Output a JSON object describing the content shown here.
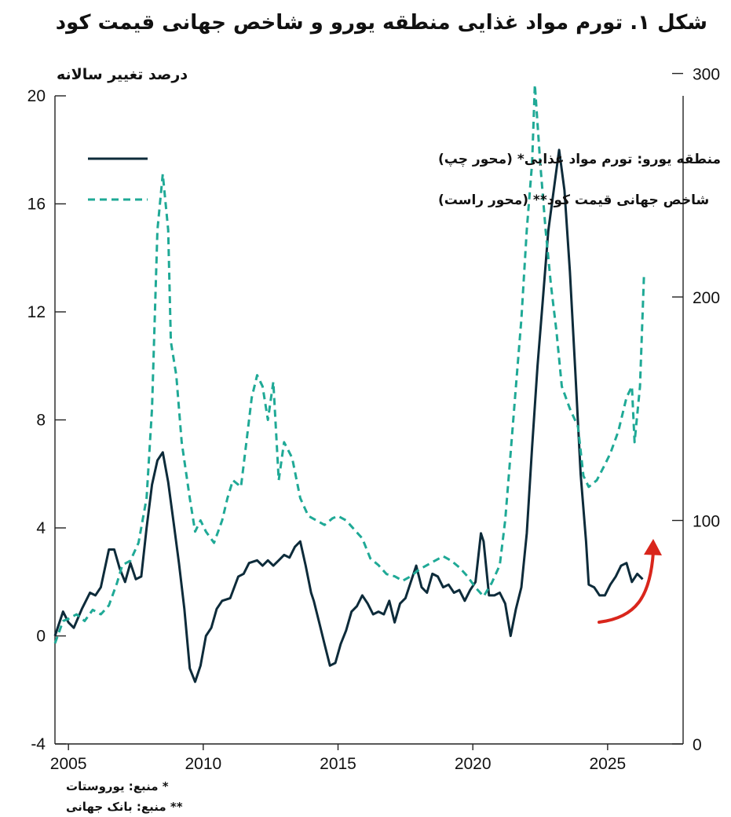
{
  "title": "شکل ۱. تورم مواد غذایی منطقه یورو و شاخص جهانی قیمت کود",
  "ylabel": "درصد تغییر سالانه",
  "notes": [
    "* منبع: یوروستات",
    "** منبع: بانک جهانی"
  ],
  "colors": {
    "series1": "#0d2b3a",
    "series2": "#1fa996",
    "arrow": "#d9261c"
  },
  "chart_data": {
    "type": "line",
    "xlim": [
      2004.5,
      2027.8
    ],
    "x_ticks": [
      2005,
      2010,
      2015,
      2020,
      2025
    ],
    "left_axis": {
      "ylim": [
        -4,
        20
      ],
      "ticks": [
        -4,
        0,
        4,
        8,
        12,
        16,
        20
      ]
    },
    "right_axis": {
      "ylim": [
        0,
        290
      ],
      "ticks": [
        0,
        100,
        200,
        300
      ]
    },
    "legend_placement": "top-left",
    "series": [
      {
        "name": "منطقه یورو: تورم مواد غذایی* (محور چپ)",
        "axis": "left",
        "style": "solid",
        "points": [
          [
            2004.5,
            0
          ],
          [
            2004.8,
            0.9
          ],
          [
            2005.0,
            0.5
          ],
          [
            2005.2,
            0.3
          ],
          [
            2005.5,
            1.0
          ],
          [
            2005.8,
            1.6
          ],
          [
            2006.0,
            1.5
          ],
          [
            2006.2,
            1.8
          ],
          [
            2006.5,
            3.2
          ],
          [
            2006.7,
            3.2
          ],
          [
            2006.9,
            2.5
          ],
          [
            2007.1,
            2.0
          ],
          [
            2007.3,
            2.7
          ],
          [
            2007.5,
            2.1
          ],
          [
            2007.7,
            2.2
          ],
          [
            2007.9,
            4.0
          ],
          [
            2008.1,
            5.6
          ],
          [
            2008.3,
            6.5
          ],
          [
            2008.5,
            6.8
          ],
          [
            2008.7,
            5.7
          ],
          [
            2008.9,
            4.2
          ],
          [
            2009.1,
            2.7
          ],
          [
            2009.3,
            1.0
          ],
          [
            2009.5,
            -1.2
          ],
          [
            2009.7,
            -1.7
          ],
          [
            2009.9,
            -1.1
          ],
          [
            2010.1,
            0.0
          ],
          [
            2010.3,
            0.3
          ],
          [
            2010.5,
            1.0
          ],
          [
            2010.7,
            1.3
          ],
          [
            2011.0,
            1.4
          ],
          [
            2011.3,
            2.2
          ],
          [
            2011.5,
            2.3
          ],
          [
            2011.7,
            2.7
          ],
          [
            2012.0,
            2.8
          ],
          [
            2012.2,
            2.6
          ],
          [
            2012.4,
            2.8
          ],
          [
            2012.6,
            2.6
          ],
          [
            2012.8,
            2.8
          ],
          [
            2013.0,
            3.0
          ],
          [
            2013.2,
            2.9
          ],
          [
            2013.4,
            3.3
          ],
          [
            2013.6,
            3.5
          ],
          [
            2013.8,
            2.6
          ],
          [
            2014.0,
            1.6
          ],
          [
            2014.1,
            1.3
          ],
          [
            2014.3,
            0.5
          ],
          [
            2014.5,
            -0.3
          ],
          [
            2014.7,
            -1.1
          ],
          [
            2014.9,
            -1.0
          ],
          [
            2015.1,
            -0.3
          ],
          [
            2015.3,
            0.2
          ],
          [
            2015.5,
            0.9
          ],
          [
            2015.7,
            1.1
          ],
          [
            2015.9,
            1.5
          ],
          [
            2016.1,
            1.2
          ],
          [
            2016.3,
            0.8
          ],
          [
            2016.5,
            0.9
          ],
          [
            2016.7,
            0.8
          ],
          [
            2016.9,
            1.3
          ],
          [
            2017.1,
            0.5
          ],
          [
            2017.3,
            1.2
          ],
          [
            2017.5,
            1.4
          ],
          [
            2017.7,
            2.0
          ],
          [
            2017.9,
            2.6
          ],
          [
            2018.1,
            1.8
          ],
          [
            2018.3,
            1.6
          ],
          [
            2018.5,
            2.3
          ],
          [
            2018.7,
            2.2
          ],
          [
            2018.9,
            1.8
          ],
          [
            2019.1,
            1.9
          ],
          [
            2019.3,
            1.6
          ],
          [
            2019.5,
            1.7
          ],
          [
            2019.7,
            1.3
          ],
          [
            2019.9,
            1.7
          ],
          [
            2020.1,
            2.0
          ],
          [
            2020.3,
            3.8
          ],
          [
            2020.4,
            3.5
          ],
          [
            2020.6,
            1.5
          ],
          [
            2020.8,
            1.5
          ],
          [
            2021.0,
            1.6
          ],
          [
            2021.2,
            1.2
          ],
          [
            2021.4,
            0.0
          ],
          [
            2021.6,
            1.0
          ],
          [
            2021.8,
            1.8
          ],
          [
            2022.0,
            3.8
          ],
          [
            2022.2,
            7.0
          ],
          [
            2022.4,
            10.0
          ],
          [
            2022.6,
            12.5
          ],
          [
            2022.8,
            15.0
          ],
          [
            2023.0,
            16.5
          ],
          [
            2023.2,
            18.0
          ],
          [
            2023.4,
            16.5
          ],
          [
            2023.6,
            13.5
          ],
          [
            2023.8,
            9.8
          ],
          [
            2024.0,
            6.0
          ],
          [
            2024.2,
            3.5
          ],
          [
            2024.3,
            1.9
          ],
          [
            2024.5,
            1.8
          ],
          [
            2024.7,
            1.5
          ],
          [
            2024.9,
            1.5
          ],
          [
            2025.1,
            1.9
          ],
          [
            2025.3,
            2.2
          ],
          [
            2025.5,
            2.6
          ],
          [
            2025.7,
            2.7
          ],
          [
            2025.9,
            2.0
          ],
          [
            2026.1,
            2.3
          ],
          [
            2026.3,
            2.1
          ]
        ]
      },
      {
        "name": "شاخص جهانی قیمت کود** (محور راست)",
        "axis": "right",
        "style": "dashed",
        "points": [
          [
            2004.5,
            45
          ],
          [
            2004.8,
            55
          ],
          [
            2005.0,
            56
          ],
          [
            2005.3,
            58
          ],
          [
            2005.6,
            55
          ],
          [
            2005.9,
            60
          ],
          [
            2006.2,
            58
          ],
          [
            2006.5,
            62
          ],
          [
            2006.8,
            72
          ],
          [
            2007.0,
            80
          ],
          [
            2007.3,
            82
          ],
          [
            2007.6,
            90
          ],
          [
            2007.9,
            110
          ],
          [
            2008.1,
            150
          ],
          [
            2008.3,
            230
          ],
          [
            2008.5,
            255
          ],
          [
            2008.7,
            230
          ],
          [
            2008.8,
            180
          ],
          [
            2009.0,
            165
          ],
          [
            2009.2,
            135
          ],
          [
            2009.5,
            110
          ],
          [
            2009.7,
            95
          ],
          [
            2009.9,
            100
          ],
          [
            2010.1,
            95
          ],
          [
            2010.4,
            90
          ],
          [
            2010.7,
            100
          ],
          [
            2010.9,
            110
          ],
          [
            2011.1,
            118
          ],
          [
            2011.4,
            115
          ],
          [
            2011.6,
            135
          ],
          [
            2011.8,
            155
          ],
          [
            2012.0,
            165
          ],
          [
            2012.2,
            160
          ],
          [
            2012.4,
            145
          ],
          [
            2012.6,
            162
          ],
          [
            2012.8,
            118
          ],
          [
            2013.0,
            135
          ],
          [
            2013.3,
            128
          ],
          [
            2013.6,
            110
          ],
          [
            2013.9,
            102
          ],
          [
            2014.2,
            100
          ],
          [
            2014.5,
            98
          ],
          [
            2014.8,
            101
          ],
          [
            2015.0,
            102
          ],
          [
            2015.3,
            100
          ],
          [
            2015.6,
            96
          ],
          [
            2015.9,
            92
          ],
          [
            2016.2,
            83
          ],
          [
            2016.5,
            80
          ],
          [
            2016.8,
            76
          ],
          [
            2017.1,
            75
          ],
          [
            2017.4,
            73
          ],
          [
            2017.7,
            75
          ],
          [
            2018.0,
            78
          ],
          [
            2018.3,
            80
          ],
          [
            2018.6,
            82
          ],
          [
            2018.9,
            84
          ],
          [
            2019.2,
            82
          ],
          [
            2019.5,
            79
          ],
          [
            2019.8,
            75
          ],
          [
            2020.1,
            70
          ],
          [
            2020.4,
            66
          ],
          [
            2020.7,
            72
          ],
          [
            2021.0,
            80
          ],
          [
            2021.2,
            100
          ],
          [
            2021.4,
            130
          ],
          [
            2021.6,
            160
          ],
          [
            2021.8,
            190
          ],
          [
            2022.0,
            230
          ],
          [
            2022.2,
            260
          ],
          [
            2022.3,
            295
          ],
          [
            2022.5,
            260
          ],
          [
            2022.7,
            230
          ],
          [
            2022.9,
            205
          ],
          [
            2023.1,
            185
          ],
          [
            2023.3,
            160
          ],
          [
            2023.6,
            150
          ],
          [
            2023.9,
            142
          ],
          [
            2024.1,
            120
          ],
          [
            2024.3,
            115
          ],
          [
            2024.6,
            118
          ],
          [
            2024.9,
            125
          ],
          [
            2025.1,
            130
          ],
          [
            2025.4,
            140
          ],
          [
            2025.7,
            155
          ],
          [
            2025.9,
            160
          ],
          [
            2026.0,
            135
          ],
          [
            2026.2,
            160
          ],
          [
            2026.35,
            210
          ]
        ]
      }
    ]
  }
}
